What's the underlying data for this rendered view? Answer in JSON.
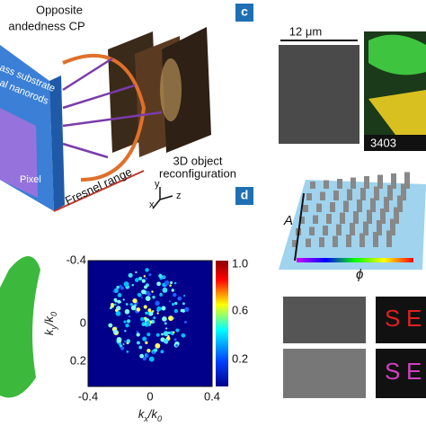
{
  "panel_a": {
    "heading": [
      "Opposite",
      "andedness CP"
    ],
    "slab_labels": [
      "ass substrate",
      "al nanorods",
      "Pixel"
    ],
    "fresnel": "Fresnel range",
    "object": [
      "3D object",
      "reconfiguration"
    ],
    "axes": [
      "x",
      "y",
      "z"
    ]
  },
  "panel_c": {
    "label": "c",
    "scale": "12 μm",
    "code": "3403"
  },
  "panel_d": {
    "label": "d",
    "amplitude": "A",
    "phase": "ϕ",
    "letters": [
      "S",
      "E",
      "S",
      "E"
    ]
  },
  "kspace": {
    "y_label": [
      "k",
      "y",
      "/k",
      "0"
    ],
    "x_label": [
      "k",
      "x",
      "/k",
      "0"
    ],
    "y_ticks": [
      "-0.4",
      "0",
      "0.2"
    ],
    "x_ticks": [
      "-0.4",
      "0",
      "0.4"
    ],
    "colorbar_ticks": [
      "1.0",
      "0.6",
      "0.2"
    ]
  }
}
